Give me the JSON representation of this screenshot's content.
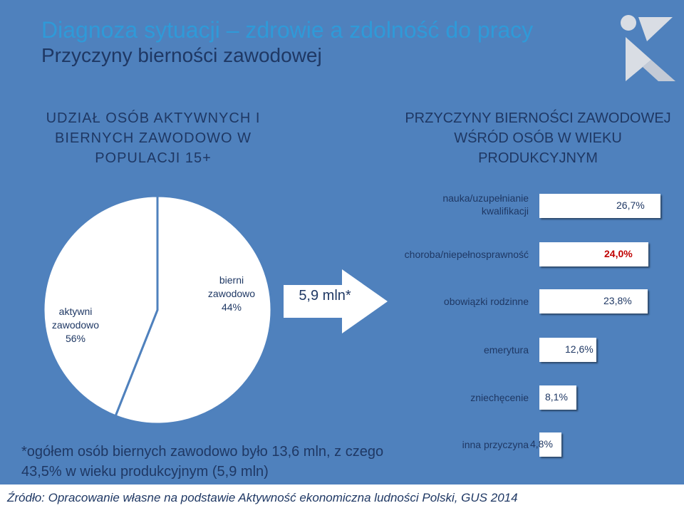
{
  "slide": {
    "title": "Diagnoza sytuacji – zdrowie a zdolność do pracy",
    "subtitle": "Przyczyny bierności zawodowej",
    "accent_color": "#2f9ad8",
    "background_color": "#4f81bd"
  },
  "left_panel": {
    "heading": "UDZIAŁ OSÓB AKTYWNYCH I BIERNYCH ZAWODOWO W POPULACJI 15+",
    "arrow_label": "5,9 mln*"
  },
  "right_panel": {
    "heading": "PRZYCZYNY BIERNOŚCI ZAWODOWEJ WŚRÓD OSÓB W WIEKU PRODUKCYJNYM"
  },
  "chart_data": [
    {
      "type": "pie",
      "title": "UDZIAŁ OSÓB AKTYWNYCH I BIERNYCH ZAWODOWO W POPULACJI 15+",
      "slices": [
        {
          "name": "aktywni zawodowo",
          "label_lines": [
            "aktywni",
            "zawodowo",
            "56%"
          ],
          "value": 56
        },
        {
          "name": "bierni zawodowo",
          "label_lines": [
            "bierni",
            "zawodowo",
            "44%"
          ],
          "value": 44
        }
      ]
    },
    {
      "type": "bar",
      "orientation": "horizontal",
      "title": "PRZYCZYNY BIERNOŚCI ZAWODOWEJ WŚRÓD OSÓB W WIEKU PRODUKCYJNYM",
      "categories": [
        [
          "nauka/uzupełnianie",
          "kwalifikacji"
        ],
        [
          "choroba/niepełnosprawność"
        ],
        [
          "obowiązki rodzinne"
        ],
        [
          "emerytura"
        ],
        [
          "zniechęcenie"
        ],
        [
          "inna przyczyna"
        ]
      ],
      "values": [
        26.7,
        24.0,
        23.8,
        12.6,
        8.1,
        4.8
      ],
      "value_labels": [
        "26,7%",
        "24,0%",
        "23,8%",
        "12,6%",
        "8,1%",
        "4,8%"
      ],
      "highlight_index": 1,
      "highlight_color": "#c00000",
      "unit": "%"
    }
  ],
  "footnote": "*ogółem osób biernych zawodowo było 13,6 mln, z czego 43,5% w wieku produkcyjnym (5,9 mln)",
  "source": "Źródło:  Opracowanie własne na podstawie Aktywność ekonomiczna ludności Polski, GUS 2014"
}
